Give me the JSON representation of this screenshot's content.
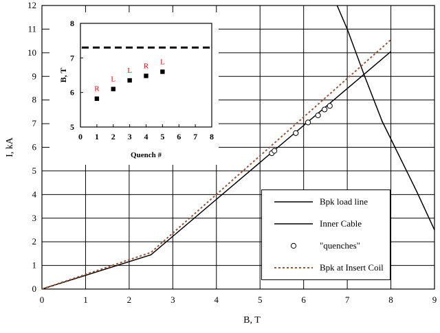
{
  "chart_data": [
    {
      "type": "line",
      "xlabel": "B, T",
      "ylabel": "I, kA",
      "xlim": [
        0,
        9
      ],
      "ylim": [
        0,
        12
      ],
      "x_ticks": [
        "0",
        "1",
        "2",
        "3",
        "4",
        "5",
        "6",
        "7",
        "8",
        "9"
      ],
      "y_ticks": [
        "0",
        "1",
        "2",
        "3",
        "4",
        "5",
        "6",
        "7",
        "8",
        "9",
        "10",
        "11",
        "12"
      ],
      "grid": true,
      "legend_position": "bottom-right",
      "series": [
        {
          "name": "Bpk load line",
          "style": "solid",
          "color": "#000000",
          "x": [
            0,
            2.5,
            8
          ],
          "y": [
            0,
            1.45,
            10.05
          ]
        },
        {
          "name": "Inner Cable",
          "style": "solid",
          "color": "#000000",
          "x": [
            6.65,
            7.0,
            7.4,
            7.8,
            8.2,
            8.6,
            9.0
          ],
          "y": [
            12.5,
            11.0,
            9.0,
            7.1,
            5.6,
            4.1,
            2.5
          ]
        },
        {
          "name": "\"quenches\"",
          "style": "markers",
          "marker": "open-circle",
          "color": "#000000",
          "x": [
            5.27,
            5.33,
            5.82,
            6.1,
            6.33,
            6.48,
            6.6
          ],
          "y": [
            5.75,
            5.85,
            6.6,
            7.05,
            7.35,
            7.6,
            7.75
          ]
        },
        {
          "name": "Bpk at Insert Coil",
          "style": "dotted",
          "color": "#a0522d",
          "x": [
            0,
            2.5,
            8
          ],
          "y": [
            0,
            1.55,
            10.55
          ]
        }
      ]
    },
    {
      "type": "scatter",
      "xlabel": "Quench #",
      "ylabel": "B, T",
      "xlim": [
        0,
        8
      ],
      "ylim": [
        5,
        8
      ],
      "x_ticks": [
        "0",
        "1",
        "2",
        "3",
        "4",
        "5",
        "6",
        "7",
        "8"
      ],
      "y_ticks": [
        "5",
        "6",
        "7",
        "8"
      ],
      "grid": false,
      "reference_line": {
        "y": 7.3,
        "style": "dashed"
      },
      "series": [
        {
          "x": [
            1,
            2,
            3,
            4,
            5
          ],
          "y": [
            5.82,
            6.1,
            6.35,
            6.48,
            6.6
          ],
          "marker": "filled-square",
          "color": "#000000",
          "labels": [
            "R",
            "L",
            "L",
            "R",
            "L"
          ],
          "label_color": "#ff0000"
        }
      ]
    }
  ]
}
